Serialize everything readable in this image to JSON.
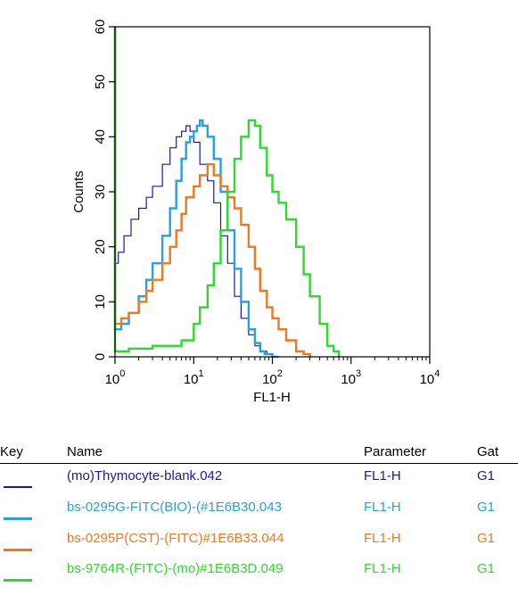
{
  "chart_data": {
    "type": "line",
    "xlabel": "FL1-H",
    "ylabel": "Counts",
    "xscale": "log",
    "xlim": [
      1,
      10000
    ],
    "ylim": [
      0,
      60
    ],
    "x_tick_labels": [
      {
        "base": "10",
        "exp": "0",
        "value": 1
      },
      {
        "base": "10",
        "exp": "1",
        "value": 10
      },
      {
        "base": "10",
        "exp": "2",
        "value": 100
      },
      {
        "base": "10",
        "exp": "3",
        "value": 1000
      },
      {
        "base": "10",
        "exp": "4",
        "value": 10000
      }
    ],
    "y_ticks": [
      "0",
      "10",
      "20",
      "30",
      "40",
      "50",
      "60"
    ],
    "series": [
      {
        "name": "(mo)Thymocyte-blank.042",
        "color": "#1a1aa0",
        "x": [
          1,
          1.1,
          1.3,
          1.6,
          2,
          2.5,
          3,
          4,
          5,
          6,
          7,
          8,
          9,
          10,
          12,
          15,
          18,
          22,
          27,
          33,
          40,
          50,
          60,
          70,
          85,
          100,
          120
        ],
        "y": [
          17,
          19,
          22,
          25,
          27,
          29,
          31,
          35,
          38,
          40,
          41,
          42,
          41,
          39,
          35,
          32,
          28,
          22,
          17,
          11,
          7,
          4,
          2,
          1,
          0.5,
          0,
          0
        ]
      },
      {
        "name": "bs-0295G-FITC(BIO)-(#1E6B30.043",
        "color": "#2a9fe0",
        "x": [
          1,
          1.2,
          1.5,
          2,
          2.5,
          3,
          4,
          5,
          6,
          7,
          8,
          9,
          10,
          11,
          12,
          13,
          15,
          18,
          22,
          27,
          33,
          40,
          50,
          60,
          70,
          80,
          100,
          120
        ],
        "y": [
          5,
          6,
          8,
          11,
          14,
          17,
          22,
          27,
          32,
          36,
          39,
          40,
          41,
          42,
          43,
          42,
          40,
          36,
          30,
          23,
          16,
          10,
          5,
          2.5,
          1,
          0.5,
          0,
          0
        ]
      },
      {
        "name": "bs-0295P(CST)-(FITC)#1E6B33.044",
        "color": "#f07820",
        "x": [
          1,
          1.2,
          1.5,
          2,
          2.5,
          3,
          4,
          5,
          6,
          7,
          8,
          10,
          12,
          15,
          18,
          22,
          27,
          33,
          40,
          50,
          60,
          70,
          85,
          100,
          120,
          150,
          200,
          250,
          300
        ],
        "y": [
          6,
          7,
          8,
          10,
          12,
          14,
          17,
          20,
          23,
          26,
          29,
          31,
          33,
          35,
          33,
          31,
          29,
          27,
          24,
          20,
          16,
          12,
          9,
          7,
          5,
          3,
          1,
          0.5,
          0
        ]
      },
      {
        "name": "bs-9764R-(FITC)-(mo)#1E6B3D.049",
        "color": "#30d830",
        "x": [
          1,
          1.5,
          2,
          3,
          5,
          7,
          10,
          12,
          15,
          18,
          22,
          27,
          33,
          40,
          50,
          60,
          70,
          85,
          100,
          120,
          150,
          200,
          250,
          300,
          400,
          500,
          600,
          700
        ],
        "y": [
          1,
          1.5,
          1.5,
          2,
          2,
          3,
          6,
          9,
          13,
          17,
          23,
          30,
          36,
          40,
          43,
          42,
          38,
          33,
          30,
          28,
          25,
          20,
          15,
          11,
          6,
          2,
          1,
          0
        ]
      }
    ]
  },
  "legend": {
    "headers": {
      "key": "Key",
      "name": "Name",
      "parameter": "Parameter",
      "gate": "Gat"
    },
    "rows": [
      {
        "color": "#1a1aa0",
        "name": "(mo)Thymocyte-blank.042",
        "parameter": "FL1-H",
        "gate": "G1"
      },
      {
        "color": "#2a9fe0",
        "name": "bs-0295G-FITC(BIO)-(#1E6B30.043",
        "parameter": "FL1-H",
        "gate": "G1"
      },
      {
        "color": "#f07820",
        "name": "bs-0295P(CST)-(FITC)#1E6B33.044",
        "parameter": "FL1-H",
        "gate": "G1"
      },
      {
        "color": "#30d830",
        "name": "bs-9764R-(FITC)-(mo)#1E6B3D.049",
        "parameter": "FL1-H",
        "gate": "G1"
      }
    ]
  }
}
